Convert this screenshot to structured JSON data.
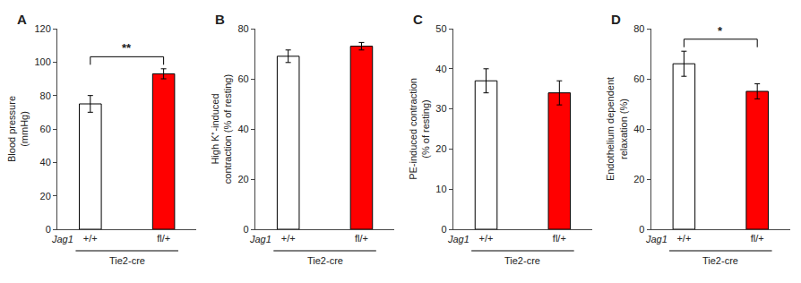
{
  "chart_data": [
    {
      "type": "bar",
      "title": "A",
      "ylabel": "Blood pressure\n(mmHg)",
      "xlabel": "Tie2-cre",
      "categories": [
        "+/+",
        "fl/+"
      ],
      "values": [
        75,
        93
      ],
      "errors": [
        5,
        3
      ],
      "colors": [
        "white",
        "red"
      ],
      "ylim": [
        0,
        120
      ],
      "yticks": [
        0,
        20,
        40,
        60,
        80,
        100,
        120
      ],
      "grid": false,
      "annotations": [
        {
          "text": "Jag1"
        },
        {
          "text": "**",
          "x": [
            "+/+",
            "fl/+"
          ]
        }
      ]
    },
    {
      "type": "bar",
      "title": "B",
      "ylabel": "High K⁺-induced\ncontraction (% of resting)",
      "xlabel": "Tie2-cre",
      "categories": [
        "+/+",
        "fl/+"
      ],
      "values": [
        69,
        73
      ],
      "errors": [
        2.5,
        1.5
      ],
      "colors": [
        "white",
        "red"
      ],
      "ylim": [
        0,
        80
      ],
      "yticks": [
        0,
        20,
        40,
        60,
        80
      ],
      "grid": false,
      "annotations": [
        {
          "text": "Jag1"
        }
      ]
    },
    {
      "type": "bar",
      "title": "C",
      "ylabel": "PE-induced contraction\n(% of resting)",
      "xlabel": "Tie2-cre",
      "categories": [
        "+/+",
        "fl/+"
      ],
      "values": [
        37,
        34
      ],
      "errors": [
        3,
        3
      ],
      "colors": [
        "white",
        "red"
      ],
      "ylim": [
        0,
        50
      ],
      "yticks": [
        0,
        10,
        20,
        30,
        40,
        50
      ],
      "grid": false,
      "annotations": [
        {
          "text": "Jag1"
        }
      ]
    },
    {
      "type": "bar",
      "title": "D",
      "ylabel": "Endothelium dependent\nrelaxation (%)",
      "xlabel": "Tie2-cre",
      "categories": [
        "+/+",
        "fl/+"
      ],
      "values": [
        66,
        55
      ],
      "errors": [
        5,
        3
      ],
      "colors": [
        "white",
        "red"
      ],
      "ylim": [
        0,
        80
      ],
      "yticks": [
        0,
        20,
        40,
        60,
        80
      ],
      "grid": false,
      "annotations": [
        {
          "text": "Jag1"
        },
        {
          "text": "*",
          "x": [
            "+/+",
            "fl/+"
          ]
        }
      ]
    }
  ]
}
